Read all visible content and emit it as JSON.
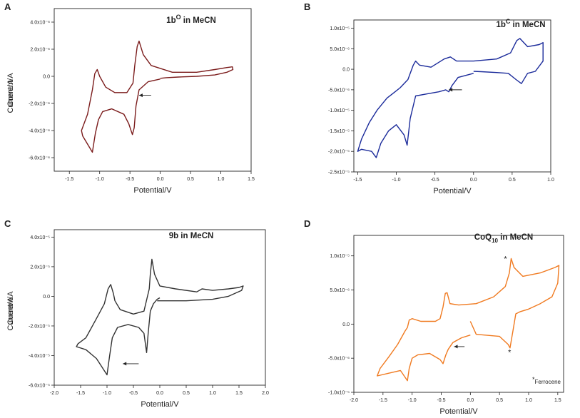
{
  "chart_data": [
    {
      "panel": "A",
      "type": "line",
      "title_main": "1b",
      "title_sup": "O",
      "title_rest": " in MeCN",
      "xlabel": "Potential/V",
      "ylabel": "Current/A",
      "xlim": [
        -1.75,
        1.5
      ],
      "ylim": [
        -7e-06,
        5e-06
      ],
      "xticks": [
        -1.5,
        -1.0,
        -0.5,
        0.0,
        0.5,
        1.0,
        1.5
      ],
      "xtick_labels": [
        "-1.5",
        "-1.0",
        "-0.5",
        "0.0",
        "0.5",
        "1.0",
        "1.5"
      ],
      "yticks": [
        4e-06,
        2e-06,
        0,
        -2e-06,
        -4e-06,
        -6e-06
      ],
      "ytick_labels": [
        "4.0x10⁻⁶",
        "2.0x10⁻⁶",
        "0.0",
        "-2.0x10⁻⁶",
        "-4.0x10⁻⁶",
        "-6.0x10⁻⁶"
      ],
      "color": "#7b1c1c",
      "arrow": {
        "x_from": -0.15,
        "x_to": -0.35,
        "y": -1.4e-06
      },
      "series": [
        {
          "name": "CV",
          "x": [
            0.0,
            -0.2,
            -0.35,
            -0.4,
            -0.43,
            -0.46,
            -0.52,
            -0.6,
            -0.8,
            -0.95,
            -1.02,
            -1.07,
            -1.12,
            -1.2,
            -1.28,
            -1.3,
            -1.2,
            -1.12,
            -1.08,
            -1.04,
            -1.0,
            -0.9,
            -0.75,
            -0.55,
            -0.45,
            -0.42,
            -0.38,
            -0.35,
            -0.28,
            -0.15,
            0.2,
            0.6,
            0.9,
            1.1,
            1.19,
            1.2,
            1.1,
            0.9,
            0.6,
            0.3,
            0.1,
            0.0
          ],
          "y": [
            -2e-07,
            -4e-07,
            -1e-06,
            -2.2e-06,
            -3.8e-06,
            -4.3e-06,
            -3.5e-06,
            -2.8e-06,
            -2.4e-06,
            -2.6e-06,
            -3.2e-06,
            -4.2e-06,
            -5.6e-06,
            -5e-06,
            -4.4e-06,
            -4e-06,
            -2.8e-06,
            -1e-06,
            2e-07,
            5e-07,
            0.0,
            -8e-07,
            -1.2e-06,
            -1.2e-06,
            -5e-07,
            8e-07,
            2.2e-06,
            2.6e-06,
            1.6e-06,
            8e-07,
            3e-07,
            3e-07,
            5e-07,
            6.5e-07,
            7e-07,
            5e-07,
            3e-07,
            1e-07,
            0.0,
            -5e-08,
            -1e-07,
            -1.5e-07
          ]
        }
      ]
    },
    {
      "panel": "B",
      "type": "line",
      "title_main": "1b",
      "title_sup": "C",
      "title_rest": " in MeCN",
      "xlabel": "Potential/V",
      "ylabel": "Current/A",
      "xlim": [
        -1.55,
        1.0
      ],
      "ylim": [
        -2.5e-05,
        1.2e-05
      ],
      "xticks": [
        -1.5,
        -1.0,
        -0.5,
        0.0,
        0.5,
        1.0
      ],
      "xtick_labels": [
        "-1.5",
        "-1.0",
        "-0.5",
        "0.0",
        "0.5",
        "1.0"
      ],
      "yticks": [
        1e-05,
        5e-06,
        0,
        -5e-06,
        -1e-05,
        -1.5e-05,
        -2e-05,
        -2.5e-05
      ],
      "ytick_labels": [
        "1.0x10⁻⁵",
        "5.0x10⁻⁶",
        "0.0",
        "-5.0x10⁻⁶",
        "-1.0x10⁻⁵",
        "-1.5x10⁻⁵",
        "-2.0x10⁻⁵",
        "-2.5x10⁻⁵"
      ],
      "color": "#1a2a9a",
      "arrow": {
        "x_from": -0.15,
        "x_to": -0.32,
        "y": -5e-06
      },
      "series": [
        {
          "name": "CV",
          "x": [
            0.0,
            -0.2,
            -0.28,
            -0.32,
            -0.36,
            -0.45,
            -0.6,
            -0.75,
            -0.82,
            -0.86,
            -0.9,
            -1.0,
            -1.1,
            -1.2,
            -1.26,
            -1.32,
            -1.45,
            -1.5,
            -1.45,
            -1.35,
            -1.25,
            -1.12,
            -1.05,
            -0.95,
            -0.85,
            -0.78,
            -0.75,
            -0.7,
            -0.55,
            -0.38,
            -0.3,
            -0.22,
            0.0,
            0.3,
            0.48,
            0.56,
            0.6,
            0.7,
            0.85,
            0.9,
            0.9,
            0.8,
            0.7,
            0.62,
            0.55,
            0.45,
            0.3,
            0.1,
            0.0
          ],
          "y": [
            -1e-06,
            -2e-06,
            -4e-06,
            -5.5e-06,
            -5e-06,
            -5.5e-06,
            -6e-06,
            -6.5e-06,
            -1.2e-05,
            -1.85e-05,
            -1.6e-05,
            -1.35e-05,
            -1.5e-05,
            -1.8e-05,
            -2.15e-05,
            -2e-05,
            -1.95e-05,
            -2e-05,
            -1.7e-05,
            -1.3e-05,
            -1e-05,
            -7e-06,
            -6e-06,
            -4.5e-06,
            -2.5e-06,
            1e-06,
            2e-06,
            1e-06,
            5e-07,
            2.5e-06,
            3e-06,
            2e-06,
            2e-06,
            2.5e-06,
            4e-06,
            7e-06,
            7.5e-06,
            5.5e-06,
            6e-06,
            6.5e-06,
            2e-06,
            -5e-07,
            -1e-06,
            -3.5e-06,
            -2.5e-06,
            -1e-06,
            -8e-07,
            -6e-07,
            -5e-07
          ]
        }
      ]
    },
    {
      "panel": "C",
      "type": "line",
      "title_main": "9b",
      "title_sup": "",
      "title_rest": " in MeCN",
      "xlabel": "Potential/V",
      "ylabel": "Current/A",
      "xlim": [
        -2.0,
        2.0
      ],
      "ylim": [
        -6e-05,
        4.5e-05
      ],
      "xticks": [
        -2.0,
        -1.5,
        -1.0,
        -0.5,
        0.0,
        0.5,
        1.0,
        1.5,
        2.0
      ],
      "xtick_labels": [
        "-2.0",
        "-1.5",
        "-1.0",
        "-0.5",
        "0.0",
        "0.5",
        "1.0",
        "1.5",
        "2.0"
      ],
      "yticks": [
        4e-05,
        2e-05,
        0,
        -2e-05,
        -4e-05,
        -6e-05
      ],
      "ytick_labels": [
        "4.0x10⁻⁵",
        "2.0x10⁻⁵",
        "0.0",
        "-2.0x10⁻⁵",
        "-4.0x10⁻⁵",
        "-6.0x10⁻⁵"
      ],
      "color": "#333333",
      "arrow": {
        "x_from": -0.4,
        "x_to": -0.7,
        "y": -4.55e-05
      },
      "series": [
        {
          "name": "CV",
          "x": [
            0.0,
            -0.05,
            -0.12,
            -0.18,
            -0.22,
            -0.25,
            -0.3,
            -0.4,
            -0.6,
            -0.8,
            -0.9,
            -0.95,
            -1.0,
            -1.2,
            -1.4,
            -1.58,
            -1.55,
            -1.4,
            -1.2,
            -1.05,
            -0.98,
            -0.93,
            -0.88,
            -0.85,
            -0.75,
            -0.5,
            -0.3,
            -0.2,
            -0.18,
            -0.15,
            -0.1,
            0.0,
            0.3,
            0.7,
            0.8,
            1.0,
            1.3,
            1.5,
            1.58,
            1.55,
            1.3,
            1.0,
            0.5,
            0.0,
            -0.05
          ],
          "y": [
            -1e-06,
            -2e-06,
            -5e-06,
            -1e-05,
            -2.5e-05,
            -3.8e-05,
            -2.5e-05,
            -2.1e-05,
            -1.9e-05,
            -2.1e-05,
            -2.8e-05,
            -4e-05,
            -5.3e-05,
            -4.2e-05,
            -3.6e-05,
            -3.4e-05,
            -3.2e-05,
            -2.8e-05,
            -1.5e-05,
            -5e-06,
            5e-06,
            8e-06,
            2e-06,
            -3e-06,
            -9e-06,
            -1.2e-05,
            -1e-05,
            5e-06,
            1.5e-05,
            2.5e-05,
            1.5e-05,
            7e-06,
            5e-06,
            3e-06,
            5e-06,
            4e-06,
            5e-06,
            6e-06,
            7e-06,
            4e-06,
            0.0,
            -2e-06,
            -3e-06,
            -3e-06,
            -3e-06
          ]
        }
      ]
    },
    {
      "panel": "D",
      "type": "line",
      "title_main": "CoQ",
      "title_sub": "10",
      "title_rest": " in MeCN",
      "xlabel": "Potential/V",
      "ylabel": "Current/A",
      "xlim": [
        -2.0,
        1.6
      ],
      "ylim": [
        -1e-05,
        1.3e-05
      ],
      "xticks": [
        -2.0,
        -1.5,
        -1.0,
        -0.5,
        0.0,
        0.5,
        1.0,
        1.5
      ],
      "xtick_labels": [
        "-2.0",
        "-1.5",
        "-1.0",
        "-0.5",
        "0.0",
        "0.5",
        "1.0",
        "1.5"
      ],
      "yticks": [
        1e-05,
        5e-06,
        0,
        -5e-06,
        -1e-05
      ],
      "ytick_labels": [
        "1.0x10⁻⁵",
        "5.0x10⁻⁶",
        "0.0",
        "-5.0x10⁻⁶",
        "-1.0x10⁻⁵"
      ],
      "color": "#f07a20",
      "arrow": {
        "x_from": -0.1,
        "x_to": -0.28,
        "y": -3.3e-06
      },
      "annotation_stars": [
        {
          "x": 0.65,
          "y": 9.5e-06,
          "text": "*"
        },
        {
          "x": 0.72,
          "y": -4.2e-06,
          "text": "*"
        }
      ],
      "footnote_star": "*",
      "footnote": "Ferrocene",
      "series": [
        {
          "name": "CV",
          "x": [
            0.0,
            -0.15,
            -0.3,
            -0.38,
            -0.42,
            -0.47,
            -0.52,
            -0.7,
            -0.9,
            -1.0,
            -1.05,
            -1.08,
            -1.12,
            -1.2,
            -1.4,
            -1.6,
            -1.55,
            -1.4,
            -1.25,
            -1.12,
            -1.08,
            -1.05,
            -1.0,
            -0.85,
            -0.6,
            -0.52,
            -0.47,
            -0.43,
            -0.4,
            -0.35,
            -0.2,
            0.1,
            0.4,
            0.6,
            0.67,
            0.7,
            0.75,
            0.9,
            1.2,
            1.45,
            1.52,
            1.5,
            1.4,
            1.2,
            1.0,
            0.85,
            0.78,
            0.73,
            0.68,
            0.65,
            0.5,
            0.1,
            0.0
          ],
          "y": [
            -1.6e-06,
            -2e-06,
            -2.7e-06,
            -3.7e-06,
            -4.5e-06,
            -5.8e-06,
            -5.2e-06,
            -4.3e-06,
            -4.5e-06,
            -5e-06,
            -6.5e-06,
            -8.3e-06,
            -7.8e-06,
            -6.8e-06,
            -7.2e-06,
            -7.6e-06,
            -6.5e-06,
            -4.8e-06,
            -3e-06,
            -1e-06,
            -5e-07,
            6e-07,
            8e-07,
            4e-07,
            4e-07,
            8e-07,
            2.5e-06,
            4.5e-06,
            4.6e-06,
            3e-06,
            2.8e-06,
            3e-06,
            4e-06,
            5.5e-06,
            7.5e-06,
            9.6e-06,
            8.3e-06,
            7e-06,
            7.5e-06,
            8.3e-06,
            8.6e-06,
            6e-06,
            4e-06,
            3e-06,
            2.2e-06,
            1.8e-06,
            1.5e-06,
            -1e-06,
            -3.5e-06,
            -3e-06,
            -1.8e-06,
            -1.5e-06,
            4e-07
          ]
        }
      ]
    }
  ]
}
